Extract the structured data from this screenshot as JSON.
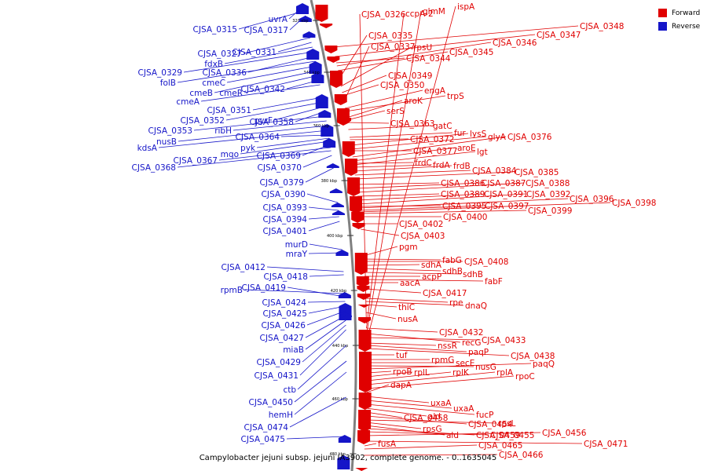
{
  "caption": "Campylobacter jejuni subsp. jejuni IA3902, complete genome. - 0..1635045",
  "legend": [
    {
      "label": "Forward",
      "color": "#e00000"
    },
    {
      "label": "Reverse",
      "color": "#1515c8"
    }
  ],
  "colors": {
    "forward": "#e00000",
    "reverse": "#1515c8",
    "backbone": "#808080"
  },
  "kbp_ticks": [
    "320 kbp",
    "340 kbp",
    "360 kbp",
    "380 kbp",
    "400 kbp",
    "420 kbp",
    "440 kbp",
    "460 kbp",
    "480 kbp"
  ],
  "forward_labels": [
    "CJSA_0326",
    "ccpA-2",
    "glmM",
    "ispA",
    "CJSA_0348",
    "CJSA_0347",
    "CJSA_0335",
    "CJSA_0346",
    "CJSA_0337",
    "rpsU",
    "CJSA_0345",
    "CJSA_0344",
    "CJSA_0349",
    "CJSA_0350",
    "engA",
    "trpS",
    "aroK",
    "serS",
    "CJSA_0363",
    "gatC",
    "fur",
    "lysS",
    "glyA",
    "CJSA_0376",
    "CJSA_0372",
    "CJSA_0377",
    "aroE",
    "lgt",
    "frdC",
    "frdA",
    "frdB",
    "CJSA_0384",
    "CJSA_0385",
    "CJSA_0386",
    "CJSA_0387",
    "CJSA_0388",
    "CJSA_0389",
    "CJSA_0391",
    "CJSA_0392",
    "CJSA_0396",
    "CJSA_0398",
    "CJSA_0395",
    "CJSA_0397",
    "CJSA_0399",
    "CJSA_0400",
    "CJSA_0402",
    "CJSA_0403",
    "pgm",
    "fabG",
    "CJSA_0408",
    "sdhA",
    "sdhB",
    "sdhB",
    "acpP",
    "fabF",
    "aacA",
    "CJSA_0417",
    "rpe",
    "dnaQ",
    "thiC",
    "nusA",
    "CJSA_0432",
    "recG",
    "CJSA_0433",
    "nssR",
    "paqP",
    "CJSA_0438",
    "tuf",
    "rpmG",
    "secE",
    "nusG",
    "paqQ",
    "rpoB",
    "rplL",
    "rplK",
    "rplA",
    "rpoC",
    "dapA",
    "uxaA",
    "uxaA",
    "fucP",
    "ald",
    "CJSA_0458",
    "CJSA_0454",
    "rpsL",
    "rpsG",
    "ald",
    "CJSA_0459",
    "CJSA_0455",
    "CJSA_0456",
    "CJSA_0471",
    "fusA",
    "CJSA_0465",
    "CJSA_0466"
  ],
  "reverse_labels": [
    "uvrA",
    "CJSA_0315",
    "CJSA_0317",
    "CJSA_0327",
    "CJSA_0331",
    "fdxB",
    "CJSA_0329",
    "CJSA_0336",
    "folB",
    "cmeC",
    "cmeB",
    "cmeR",
    "CJSA_0342",
    "cmeA",
    "CJSA_0351",
    "CJSA_0352",
    "pyrF",
    "CJSA_0358",
    "CJSA_0353",
    "ribH",
    "nusB",
    "kdsA",
    "CJSA_0364",
    "pyk",
    "mqo",
    "CJSA_0369",
    "CJSA_0367",
    "CJSA_0368",
    "CJSA_0370",
    "CJSA_0379",
    "CJSA_0390",
    "CJSA_0393",
    "CJSA_0394",
    "CJSA_0401",
    "murD",
    "mraY",
    "CJSA_0412",
    "CJSA_0418",
    "rpmB",
    "CJSA_0419",
    "CJSA_0424",
    "CJSA_0425",
    "CJSA_0426",
    "CJSA_0427",
    "miaB",
    "CJSA_0429",
    "CJSA_0431",
    "ctb",
    "CJSA_0450",
    "hemH",
    "CJSA_0474",
    "CJSA_0475"
  ]
}
